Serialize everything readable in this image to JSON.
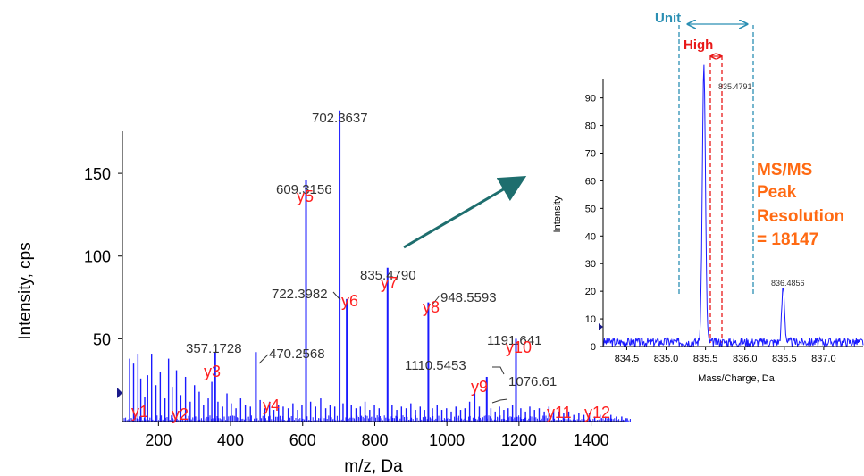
{
  "colors": {
    "spectrum": "#1a1aff",
    "ion_label": "#ff2020",
    "peak_label": "#333333",
    "arrow": "#1e6e6e",
    "unit": "#2b8fb3",
    "high": "#e81818",
    "resolution_text": "#ff6a13"
  },
  "chart_data": [
    {
      "type": "bar",
      "xlabel": "m/z, Da",
      "ylabel": "Intensity, cps",
      "xlim": [
        100,
        1520
      ],
      "ylim": [
        0,
        190
      ],
      "xticks": [
        "200",
        "400",
        "600",
        "800",
        "1000",
        "1200",
        "1400"
      ],
      "yticks": [
        "50",
        "100",
        "150"
      ],
      "labeled_peaks": [
        {
          "x": 357.1728,
          "y": 42,
          "label": "357.1728"
        },
        {
          "x": 470.2568,
          "y": 42,
          "label": "470.2568"
        },
        {
          "x": 609.3156,
          "y": 146,
          "label": "609.3156"
        },
        {
          "x": 702.3637,
          "y": 188,
          "label": "702.3637"
        },
        {
          "x": 722.3982,
          "y": 74,
          "label": "722.3982"
        },
        {
          "x": 835.479,
          "y": 93,
          "label": "835.4790"
        },
        {
          "x": 948.5593,
          "y": 72,
          "label": "948.5593"
        },
        {
          "x": 1076.61,
          "y": 19,
          "label": "1076.61"
        },
        {
          "x": 1110.5453,
          "y": 27,
          "label": "1110.5453"
        },
        {
          "x": 1191.641,
          "y": 50,
          "label": "1191.641"
        }
      ],
      "ion_labels": [
        "y1",
        "y2",
        "y3",
        "y4",
        "y5",
        "y6",
        "y7",
        "y8",
        "y9",
        "y10",
        "y11",
        "y12"
      ],
      "noise_peaks": [
        [
          120,
          38
        ],
        [
          131,
          35
        ],
        [
          143,
          41
        ],
        [
          151,
          26
        ],
        [
          162,
          15
        ],
        [
          170,
          28
        ],
        [
          181,
          41
        ],
        [
          193,
          22
        ],
        [
          205,
          30
        ],
        [
          218,
          14
        ],
        [
          228,
          38
        ],
        [
          238,
          21
        ],
        [
          250,
          31
        ],
        [
          262,
          16
        ],
        [
          275,
          27
        ],
        [
          288,
          12
        ],
        [
          300,
          22
        ],
        [
          313,
          18
        ],
        [
          325,
          10
        ],
        [
          338,
          14
        ],
        [
          348,
          24
        ],
        [
          365,
          12
        ],
        [
          378,
          9
        ],
        [
          390,
          17
        ],
        [
          402,
          11
        ],
        [
          415,
          8
        ],
        [
          428,
          14
        ],
        [
          441,
          10
        ],
        [
          455,
          9
        ],
        [
          482,
          13
        ],
        [
          495,
          8
        ],
        [
          508,
          12
        ],
        [
          520,
          7
        ],
        [
          533,
          10
        ],
        [
          546,
          9
        ],
        [
          560,
          8
        ],
        [
          573,
          11
        ],
        [
          586,
          7
        ],
        [
          598,
          10
        ],
        [
          622,
          12
        ],
        [
          636,
          9
        ],
        [
          650,
          14
        ],
        [
          664,
          8
        ],
        [
          676,
          10
        ],
        [
          689,
          9
        ],
        [
          712,
          11
        ],
        [
          735,
          10
        ],
        [
          748,
          8
        ],
        [
          760,
          9
        ],
        [
          773,
          12
        ],
        [
          786,
          7
        ],
        [
          799,
          10
        ],
        [
          812,
          8
        ],
        [
          848,
          10
        ],
        [
          861,
          7
        ],
        [
          874,
          9
        ],
        [
          887,
          8
        ],
        [
          900,
          11
        ],
        [
          913,
          7
        ],
        [
          926,
          9
        ],
        [
          938,
          7
        ],
        [
          960,
          8
        ],
        [
          973,
          10
        ],
        [
          986,
          7
        ],
        [
          999,
          8
        ],
        [
          1012,
          6
        ],
        [
          1025,
          9
        ],
        [
          1038,
          7
        ],
        [
          1050,
          8
        ],
        [
          1063,
          12
        ],
        [
          1090,
          9
        ],
        [
          1122,
          8
        ],
        [
          1134,
          6
        ],
        [
          1146,
          9
        ],
        [
          1158,
          7
        ],
        [
          1170,
          8
        ],
        [
          1182,
          10
        ],
        [
          1205,
          8
        ],
        [
          1218,
          6
        ],
        [
          1230,
          9
        ],
        [
          1243,
          7
        ],
        [
          1256,
          8
        ],
        [
          1270,
          6
        ],
        [
          1283,
          9
        ],
        [
          1296,
          7
        ],
        [
          1310,
          6
        ],
        [
          1324,
          5
        ],
        [
          1338,
          6
        ],
        [
          1352,
          4
        ],
        [
          1366,
          5
        ],
        [
          1380,
          4
        ],
        [
          1395,
          5
        ],
        [
          1410,
          3
        ],
        [
          1425,
          4
        ],
        [
          1440,
          3
        ],
        [
          1455,
          4
        ],
        [
          1470,
          3
        ],
        [
          1485,
          3
        ],
        [
          1500,
          2
        ]
      ]
    },
    {
      "type": "line",
      "xlabel": "Mass/Charge, Da",
      "ylabel": "Intensity",
      "xlim": [
        834.2,
        837.5
      ],
      "ylim": [
        0,
        97
      ],
      "xticks": [
        "834.5",
        "835.0",
        "835.5",
        "836.0",
        "836.5",
        "837.0"
      ],
      "yticks": [
        "0",
        "10",
        "20",
        "30",
        "40",
        "50",
        "60",
        "70",
        "80",
        "90"
      ],
      "peaks": [
        {
          "x": 835.4791,
          "y": 100,
          "label": "835.4791"
        },
        {
          "x": 836.4856,
          "y": 20,
          "label": "836.4856"
        }
      ]
    }
  ],
  "annotations": {
    "unit": "Unit",
    "high": "High",
    "resolution_lines": [
      "MS/MS",
      "Peak",
      "Resolution",
      "= 18147"
    ]
  }
}
